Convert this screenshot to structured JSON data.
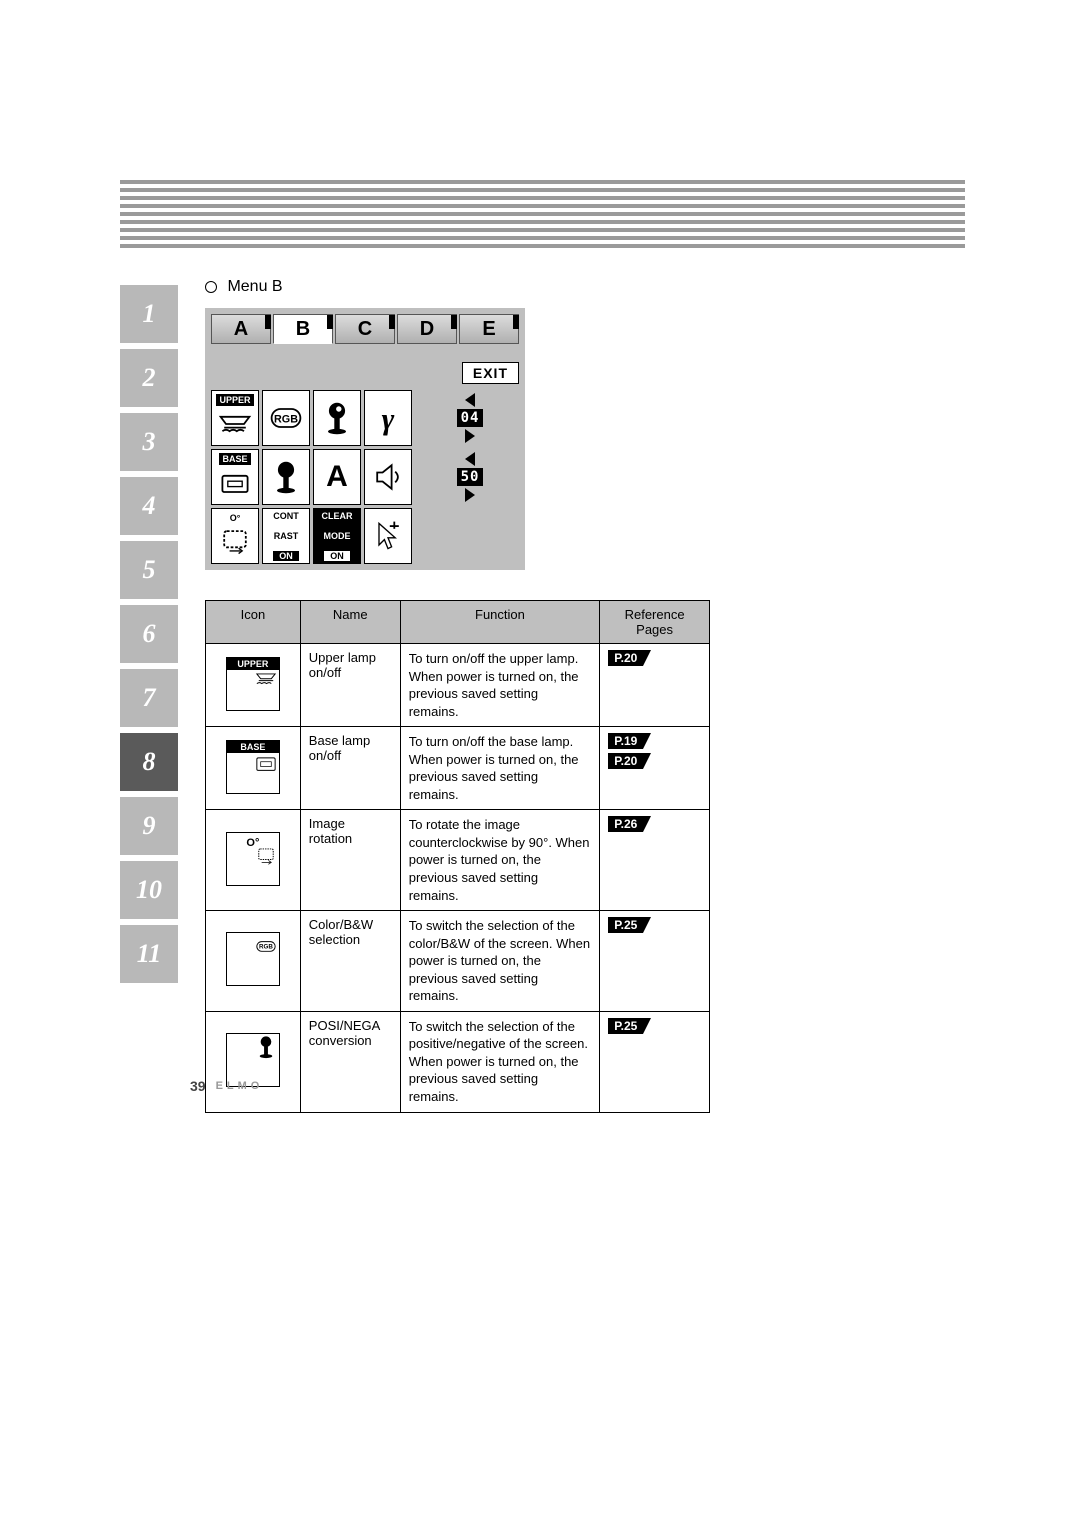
{
  "header": {
    "bar_count": 9,
    "bar_color": "#9a9a9a"
  },
  "sideTabs": {
    "labels": [
      "1",
      "2",
      "3",
      "4",
      "5",
      "6",
      "7",
      "8",
      "9",
      "10",
      "11"
    ],
    "activeIndex": 7,
    "bg": "#b8b8b8",
    "activeBg": "#5a5a5a"
  },
  "menuLabel": "Menu B",
  "osd": {
    "bg": "#bfbfbf",
    "tabs": [
      "A",
      "B",
      "C",
      "D",
      "E"
    ],
    "selectedTab": 1,
    "exit": "EXIT",
    "row1": {
      "upper_label": "UPPER",
      "rgb_label": "RGB",
      "spinner_value": "04"
    },
    "row2": {
      "base_label": "BASE",
      "text_label": "A",
      "spinner_value": "50"
    },
    "row3": {
      "rotate_label": "O°",
      "contrast_top": "CONT",
      "contrast_mid": "RAST",
      "contrast_bot": "ON",
      "clear_top": "CLEAR",
      "clear_mid": "MODE",
      "clear_bot": "ON"
    }
  },
  "table": {
    "headers": [
      "Icon",
      "Name",
      "Function",
      "Reference Pages"
    ],
    "rows": [
      {
        "iconLabel": "UPPER",
        "iconType": "upper",
        "name": "Upper lamp on/off",
        "function": "To turn on/off the upper lamp. When power is turned on, the previous saved setting remains.",
        "refs": [
          "P.20"
        ]
      },
      {
        "iconLabel": "BASE",
        "iconType": "base",
        "name": "Base lamp on/off",
        "function": "To turn on/off the base lamp. When power is turned on, the previous saved setting remains.",
        "refs": [
          "P.19",
          "P.20"
        ]
      },
      {
        "iconLabel": "O°",
        "iconType": "rotate",
        "name": "Image rotation",
        "function": "To rotate the image counterclockwise by 90°. When power is turned on, the previous saved setting remains.",
        "refs": [
          "P.26"
        ]
      },
      {
        "iconLabel": "RGB",
        "iconType": "rgb",
        "name": "Color/B&W selection",
        "function": "To switch the selection of the color/B&W of the screen. When power is turned on, the previous saved setting remains.",
        "refs": [
          "P.25"
        ]
      },
      {
        "iconLabel": "",
        "iconType": "posi",
        "name": "POSI/NEGA conversion",
        "function": "To switch the selection of the positive/negative of the screen. When power is turned on, the previous saved setting remains.",
        "refs": [
          "P.25"
        ]
      }
    ]
  },
  "footer": {
    "page": "39",
    "brand": "ELMO"
  }
}
